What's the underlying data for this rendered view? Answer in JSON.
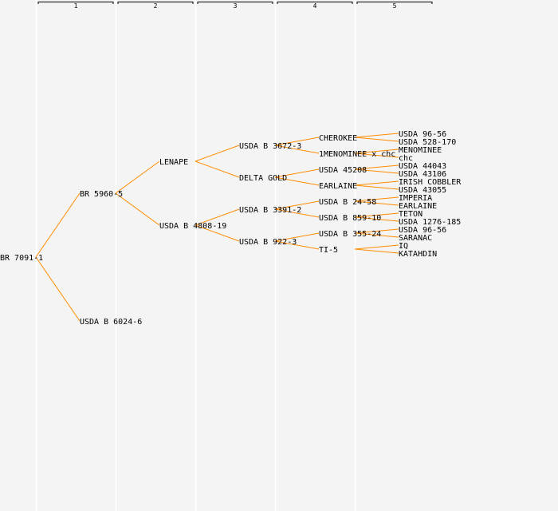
{
  "colors": {
    "background": "#f4f4f4",
    "link": "#ff8c00",
    "column_divider": "#ffffff",
    "text": "#000000"
  },
  "generations": [
    "1",
    "2",
    "3",
    "4",
    "5"
  ],
  "tree": {
    "name": "BR 7091-1",
    "children": [
      {
        "name": "BR 5960-5",
        "children": [
          {
            "name": "LENAPE",
            "children": [
              {
                "name": "USDA B 3672-3",
                "children": [
                  {
                    "name": "CHEROKEE",
                    "children": [
                      {
                        "name": "USDA 96-56"
                      },
                      {
                        "name": "USDA 528-170"
                      }
                    ]
                  },
                  {
                    "name": "1MENOMINEE x chc",
                    "children": [
                      {
                        "name": "MENOMINEE"
                      },
                      {
                        "name": "chc"
                      }
                    ]
                  }
                ]
              },
              {
                "name": "DELTA GOLD",
                "children": [
                  {
                    "name": "USDA 45208",
                    "children": [
                      {
                        "name": "USDA 44043"
                      },
                      {
                        "name": "USDA 43106"
                      }
                    ]
                  },
                  {
                    "name": "EARLAINE",
                    "children": [
                      {
                        "name": "IRISH COBBLER"
                      },
                      {
                        "name": "USDA 43055"
                      }
                    ]
                  }
                ]
              }
            ]
          },
          {
            "name": "USDA B 4808-19",
            "children": [
              {
                "name": "USDA B 3391-2",
                "children": [
                  {
                    "name": "USDA B 24-58",
                    "children": [
                      {
                        "name": "IMPERIA"
                      },
                      {
                        "name": "EARLAINE"
                      }
                    ]
                  },
                  {
                    "name": "USDA B 859-10",
                    "children": [
                      {
                        "name": "TETON"
                      },
                      {
                        "name": "USDA 1276-185"
                      }
                    ]
                  }
                ]
              },
              {
                "name": "USDA B 922-3",
                "children": [
                  {
                    "name": "USDA B 355-24",
                    "children": [
                      {
                        "name": "USDA 96-56"
                      },
                      {
                        "name": "SARANAC"
                      }
                    ]
                  },
                  {
                    "name": "TI-5",
                    "children": [
                      {
                        "name": "IQ"
                      },
                      {
                        "name": "KATAHDIN"
                      }
                    ]
                  }
                ]
              }
            ]
          }
        ]
      },
      {
        "name": "USDA B 6024-6"
      }
    ]
  }
}
